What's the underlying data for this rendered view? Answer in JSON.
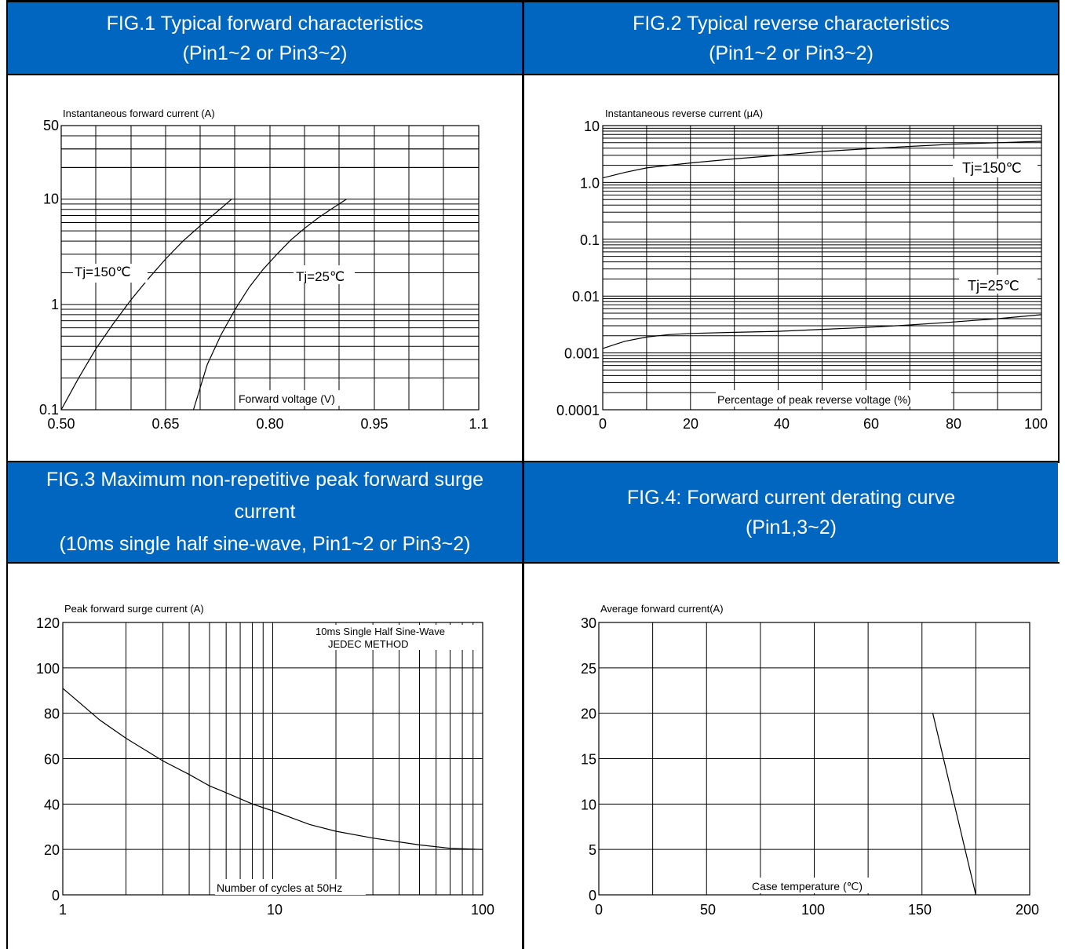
{
  "headers": {
    "fig1": {
      "line1": "FIG.1 Typical forward characteristics",
      "line2": "(Pin1~2 or Pin3~2)"
    },
    "fig2": {
      "line1": "FIG.2 Typical reverse characteristics",
      "line2": "(Pin1~2 or Pin3~2)"
    },
    "fig3": {
      "line1": "FIG.3 Maximum non-repetitive peak forward surge",
      "line2": "current",
      "line3": "(10ms single half sine-wave, Pin1~2 or Pin3~2)"
    },
    "fig4": {
      "line1": "FIG.4: Forward current derating curve",
      "line2": "(Pin1,3~2)"
    }
  },
  "colors": {
    "header_bg": "#0066c0",
    "header_text": "#ffffff",
    "grid": "#000000"
  },
  "chart_data": [
    {
      "id": "fig1",
      "type": "line",
      "ylabel": "Instantaneous forward current (A)",
      "xlabel": "Forward voltage (V)",
      "xlim": [
        0.5,
        1.1
      ],
      "ylim": [
        0.1,
        50
      ],
      "yscale": "log",
      "x_ticks": [
        "0.50",
        "0.65",
        "0.80",
        "0.95",
        "1.1"
      ],
      "y_ticks": [
        "50",
        "10",
        "1",
        "0.1"
      ],
      "grid": true,
      "series": [
        {
          "name": "Tj=150℃",
          "x": [
            0.5,
            0.525,
            0.55,
            0.575,
            0.6,
            0.625,
            0.65,
            0.675,
            0.7,
            0.725,
            0.745
          ],
          "y": [
            0.1,
            0.2,
            0.38,
            0.66,
            1.1,
            1.75,
            2.7,
            4.0,
            5.6,
            7.7,
            10
          ]
        },
        {
          "name": "Tj=25℃",
          "x": [
            0.69,
            0.71,
            0.73,
            0.75,
            0.77,
            0.79,
            0.81,
            0.83,
            0.85,
            0.87,
            0.89,
            0.91
          ],
          "y": [
            0.1,
            0.27,
            0.52,
            0.9,
            1.45,
            2.15,
            3.0,
            4.1,
            5.3,
            6.7,
            8.2,
            10
          ]
        }
      ]
    },
    {
      "id": "fig2",
      "type": "line",
      "ylabel": "Instantaneous reverse current (μA)",
      "xlabel": "Percentage of peak reverse voltage (%)",
      "xlim": [
        0,
        100
      ],
      "ylim": [
        0.0001,
        10
      ],
      "yscale": "log",
      "x_ticks": [
        "0",
        "20",
        "40",
        "60",
        "80",
        "100"
      ],
      "y_ticks": [
        "10",
        "1.0",
        "0.1",
        "0.01",
        "0.001",
        "0.0001"
      ],
      "grid": true,
      "series": [
        {
          "name": "Tj=150℃",
          "x": [
            0,
            5,
            10,
            15,
            20,
            30,
            40,
            50,
            60,
            70,
            80,
            90,
            100
          ],
          "y": [
            1.2,
            1.5,
            1.8,
            2.0,
            2.2,
            2.6,
            3.0,
            3.5,
            3.9,
            4.3,
            4.7,
            5.0,
            5.3
          ]
        },
        {
          "name": "Tj=25℃",
          "x": [
            0,
            5,
            10,
            15,
            20,
            30,
            40,
            50,
            60,
            70,
            80,
            90,
            100
          ],
          "y": [
            0.0012,
            0.0016,
            0.0019,
            0.0021,
            0.0022,
            0.0023,
            0.0024,
            0.0026,
            0.0028,
            0.0031,
            0.0035,
            0.004,
            0.0047
          ]
        }
      ]
    },
    {
      "id": "fig3",
      "type": "line",
      "ylabel": "Peak forward surge current (A)",
      "xlabel": "Number of cycles at 50Hz",
      "xlim": [
        1,
        100
      ],
      "xscale": "log",
      "ylim": [
        0,
        120
      ],
      "x_ticks": [
        "1",
        "10",
        "100"
      ],
      "y_ticks": [
        "120",
        "100",
        "80",
        "60",
        "40",
        "20",
        "0"
      ],
      "grid": true,
      "annotations": [
        "10ms Single Half Sine-Wave",
        "JEDEC METHOD"
      ],
      "series": [
        {
          "x": [
            1,
            1.5,
            2,
            3,
            4,
            5,
            6,
            8,
            10,
            15,
            20,
            30,
            50,
            70,
            100
          ],
          "y": [
            91,
            77,
            69,
            59,
            53,
            48,
            45,
            40,
            37,
            31,
            28,
            25,
            22,
            20.5,
            20
          ]
        }
      ]
    },
    {
      "id": "fig4",
      "type": "line",
      "ylabel": "Average forward current(A)",
      "xlabel": "Case temperature (℃)",
      "xlim": [
        0,
        200
      ],
      "ylim": [
        0,
        30
      ],
      "x_ticks": [
        "0",
        "50",
        "100",
        "150",
        "200"
      ],
      "y_ticks": [
        "30",
        "25",
        "20",
        "15",
        "10",
        "5",
        "0"
      ],
      "grid": true,
      "series": [
        {
          "x": [
            155,
            175
          ],
          "y": [
            20,
            0
          ]
        }
      ]
    }
  ]
}
